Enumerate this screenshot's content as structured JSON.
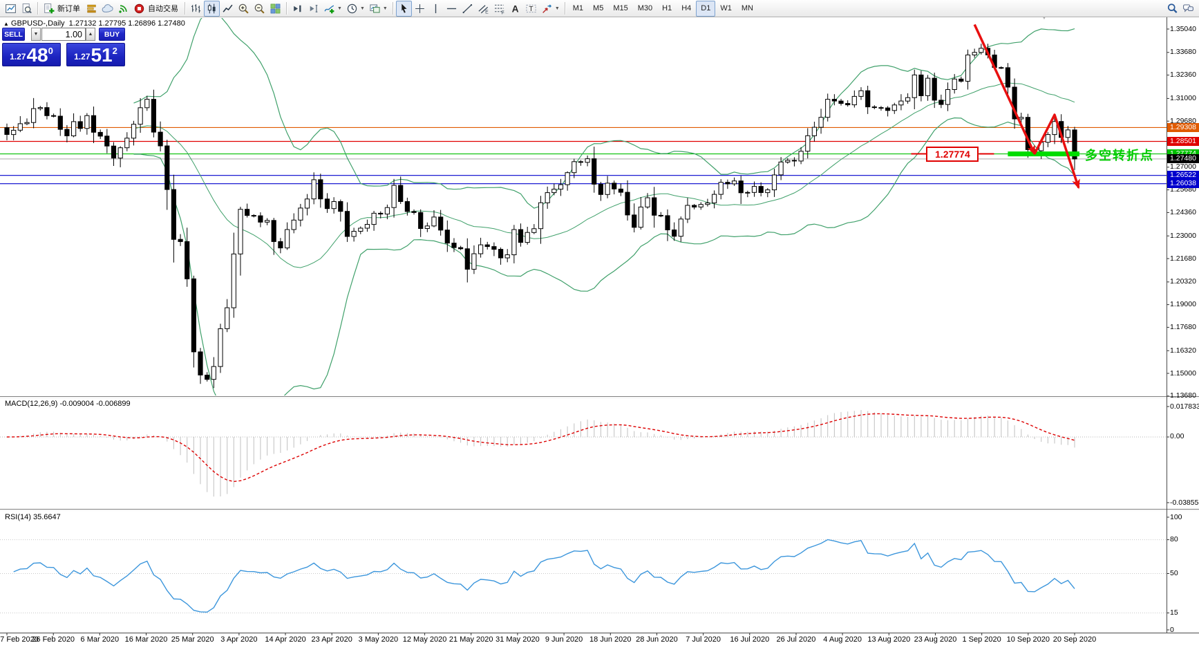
{
  "toolbar": {
    "groups": [
      {
        "items": [
          {
            "name": "chart-window",
            "icon": "chart-window"
          },
          {
            "name": "print-preview",
            "icon": "print-preview"
          }
        ]
      },
      {
        "items": [
          {
            "name": "new-order",
            "icon": "new-order",
            "label": "新订单"
          },
          {
            "name": "market-depth",
            "icon": "market-depth"
          },
          {
            "name": "cloud",
            "icon": "cloud"
          },
          {
            "name": "signal",
            "icon": "signal"
          },
          {
            "name": "auto-trading",
            "icon": "auto-trading",
            "label": "自动交易"
          }
        ]
      },
      {
        "items": [
          {
            "name": "bar-chart-mode",
            "icon": "bar-chart"
          },
          {
            "name": "candle-chart-mode",
            "icon": "candle-chart",
            "active": true
          },
          {
            "name": "line-chart-mode",
            "icon": "line-chart"
          },
          {
            "name": "zoom-in",
            "icon": "zoom-in"
          },
          {
            "name": "zoom-out",
            "icon": "zoom-out"
          },
          {
            "name": "tile-windows",
            "icon": "tile-windows"
          }
        ]
      },
      {
        "items": [
          {
            "name": "scroll-to-end",
            "icon": "scroll-to-end"
          },
          {
            "name": "shift-chart",
            "icon": "shift-chart"
          },
          {
            "name": "add-indicator",
            "icon": "add-indicator",
            "dropdown": true
          },
          {
            "name": "periods",
            "icon": "period-clock",
            "dropdown": true
          },
          {
            "name": "templates",
            "icon": "templates",
            "dropdown": true
          }
        ]
      },
      {
        "items": [
          {
            "name": "cursor-tool",
            "icon": "cursor",
            "active": true
          },
          {
            "name": "crosshair-tool",
            "icon": "crosshair"
          },
          {
            "name": "vertical-line-tool",
            "icon": "vertical-line"
          },
          {
            "name": "horizontal-line-tool",
            "icon": "horizontal-line"
          },
          {
            "name": "trendline-tool",
            "icon": "trendline"
          },
          {
            "name": "channel-tool",
            "icon": "channel"
          },
          {
            "name": "fibonacci-tool",
            "icon": "fibonacci"
          },
          {
            "name": "text-tool",
            "icon": "text-tool"
          },
          {
            "name": "label-tool",
            "icon": "label-tool"
          },
          {
            "name": "arrow-tools",
            "icon": "arrow-tools",
            "dropdown": true
          }
        ]
      },
      {
        "items": [
          {
            "name": "timeframe-m1",
            "label": "M1"
          },
          {
            "name": "timeframe-m5",
            "label": "M5"
          },
          {
            "name": "timeframe-m15",
            "label": "M15"
          },
          {
            "name": "timeframe-m30",
            "label": "M30"
          },
          {
            "name": "timeframe-h1",
            "label": "H1"
          },
          {
            "name": "timeframe-h4",
            "label": "H4"
          },
          {
            "name": "timeframe-d1",
            "label": "D1",
            "active": true
          },
          {
            "name": "timeframe-w1",
            "label": "W1"
          },
          {
            "name": "timeframe-mn",
            "label": "MN"
          }
        ]
      }
    ],
    "right_icons": [
      {
        "name": "search",
        "icon": "search"
      },
      {
        "name": "chat",
        "icon": "chat"
      }
    ]
  },
  "symbol_header": {
    "collapse_glyph": "▲",
    "text": "GBPUSD-,Daily  1.27132 1.27795 1.26896 1.27480",
    "scroll_hint_glyph": "▼"
  },
  "one_click": {
    "sell_label": "SELL",
    "buy_label": "BUY",
    "volume": "1.00",
    "spin_down_glyph": "▼",
    "spin_up_glyph": "▲",
    "sell_price_prefix": "1.27",
    "sell_price_big": "48",
    "sell_price_sup": "0",
    "buy_price_prefix": "1.27",
    "buy_price_big": "51",
    "buy_price_sup": "2"
  },
  "indicators": {
    "macd_label": "MACD(12,26,9) -0.009004 -0.006899",
    "rsi_label": "RSI(14) 35.6647"
  },
  "annotations": {
    "price_label": "1.27774",
    "turning_point_label": "多空转折点",
    "trend_color": "#e81010",
    "highlight_color": "#00dc00",
    "zigzag_anchors": [
      [
        145.0,
        1.353
      ],
      [
        154.0,
        1.27774
      ],
      [
        157.0,
        1.3005
      ],
      [
        160.6,
        1.258
      ]
    ],
    "highlight_bar": {
      "start_index": 150,
      "price": 1.27774
    }
  },
  "chart_data": {
    "type": "candlestick",
    "symbol": "GBPUSD-",
    "timeframe": "Daily",
    "ohlc_header": {
      "open": "1.27132",
      "high": "1.27795",
      "low": "1.26896",
      "close": "1.27480"
    },
    "x_labels": [
      "7 Feb 2020",
      "26 Feb 2020",
      "6 Mar 2020",
      "16 Mar 2020",
      "25 Mar 2020",
      "3 Apr 2020",
      "14 Apr 2020",
      "23 Apr 2020",
      "3 May 2020",
      "12 May 2020",
      "21 May 2020",
      "31 May 2020",
      "9 Jun 2020",
      "18 Jun 2020",
      "28 Jun 2020",
      "7 Jul 2020",
      "16 Jul 2020",
      "26 Jul 2020",
      "4 Aug 2020",
      "13 Aug 2020",
      "23 Aug 2020",
      "1 Sep 2020",
      "10 Sep 2020",
      "20 Sep 2020"
    ],
    "price_ticks": [
      "1.35040",
      "1.33680",
      "1.32360",
      "1.31000",
      "1.29680",
      "1.28360",
      "1.27000",
      "1.25680",
      "1.24360",
      "1.23000",
      "1.21680",
      "1.20320",
      "1.19000",
      "1.17680",
      "1.16320",
      "1.15000",
      "1.13680"
    ],
    "price_lines": [
      {
        "price": 1.29308,
        "badge": "1.29308",
        "color": "#e05a00",
        "text": "#fff"
      },
      {
        "price": 1.28501,
        "badge": "1.28501",
        "color": "#e00000",
        "text": "#fff"
      },
      {
        "price": 1.27774,
        "badge": "1.27774",
        "color": "#00c000",
        "text": "#fff"
      },
      {
        "price": 1.2748,
        "badge": "1.27480",
        "color": "#b8b8b8",
        "badge_bg": "#000000",
        "text": "#fff"
      },
      {
        "price": 1.26522,
        "badge": "1.26522",
        "color": "#0000cd",
        "text": "#fff"
      },
      {
        "price": 1.26038,
        "badge": "1.26038",
        "color": "#0000cd",
        "text": "#fff"
      }
    ],
    "bollinger": {
      "period": 20,
      "deviation": 2,
      "color": "#3fa06a"
    },
    "macd": {
      "params": [
        12,
        26,
        9
      ],
      "main_value": -0.009004,
      "signal_value": -0.006899,
      "scale_max": "0.017833",
      "scale_zero": "0.00",
      "scale_min": "-0.038559",
      "histogram_color": "#c6c6c6",
      "signal_color": "#dd0000"
    },
    "rsi": {
      "period": 14,
      "value": 35.6647,
      "levels": [
        "100",
        "80",
        "50",
        "15",
        "0"
      ],
      "color": "#3c96dc"
    },
    "closes": [
      1.289,
      1.2915,
      1.2953,
      1.296,
      1.3041,
      1.3047,
      1.3,
      1.2997,
      1.292,
      1.2882,
      1.2965,
      1.2925,
      1.3,
      1.2903,
      1.2881,
      1.2823,
      1.2753,
      1.2813,
      1.2869,
      1.295,
      1.3046,
      1.3095,
      1.2904,
      1.2824,
      1.257,
      1.228,
      1.2267,
      1.205,
      1.1625,
      1.149,
      1.1465,
      1.154,
      1.176,
      1.1882,
      1.2195,
      1.2455,
      1.2419,
      1.2417,
      1.238,
      1.239,
      1.2267,
      1.223,
      1.2337,
      1.2392,
      1.2462,
      1.2515,
      1.2627,
      1.2515,
      1.2459,
      1.25,
      1.2443,
      1.2297,
      1.2327,
      1.2345,
      1.2367,
      1.2432,
      1.2427,
      1.2465,
      1.2594,
      1.25,
      1.2442,
      1.2436,
      1.2343,
      1.2358,
      1.241,
      1.2334,
      1.2258,
      1.2232,
      1.2225,
      1.2106,
      1.2196,
      1.2248,
      1.2238,
      1.2222,
      1.2172,
      1.219,
      1.2337,
      1.2262,
      1.232,
      1.2342,
      1.2493,
      1.2552,
      1.2572,
      1.2598,
      1.2668,
      1.2732,
      1.2728,
      1.2749,
      1.2601,
      1.2541,
      1.2607,
      1.2573,
      1.2554,
      1.2422,
      1.235,
      1.2468,
      1.2522,
      1.242,
      1.2418,
      1.2335,
      1.2298,
      1.2398,
      1.2478,
      1.2468,
      1.2483,
      1.2492,
      1.2542,
      1.2612,
      1.2603,
      1.262,
      1.2551,
      1.2553,
      1.2588,
      1.2552,
      1.2568,
      1.2655,
      1.273,
      1.274,
      1.2736,
      1.2793,
      1.2883,
      1.2932,
      1.299,
      1.3095,
      1.3085,
      1.3071,
      1.3063,
      1.3112,
      1.3145,
      1.3051,
      1.3047,
      1.3045,
      1.303,
      1.3062,
      1.3085,
      1.3105,
      1.3237,
      1.3116,
      1.3218,
      1.309,
      1.3065,
      1.3152,
      1.3213,
      1.32,
      1.3353,
      1.3368,
      1.3392,
      1.3353,
      1.328,
      1.3279,
      1.3166,
      1.2981,
      1.299,
      1.2802,
      1.2796,
      1.2845,
      1.289,
      1.2966,
      1.2873,
      1.2917,
      1.2748
    ],
    "candle_up_fill": "#ffffff",
    "candle_down_fill": "#000000",
    "candle_outline": "#000000"
  }
}
